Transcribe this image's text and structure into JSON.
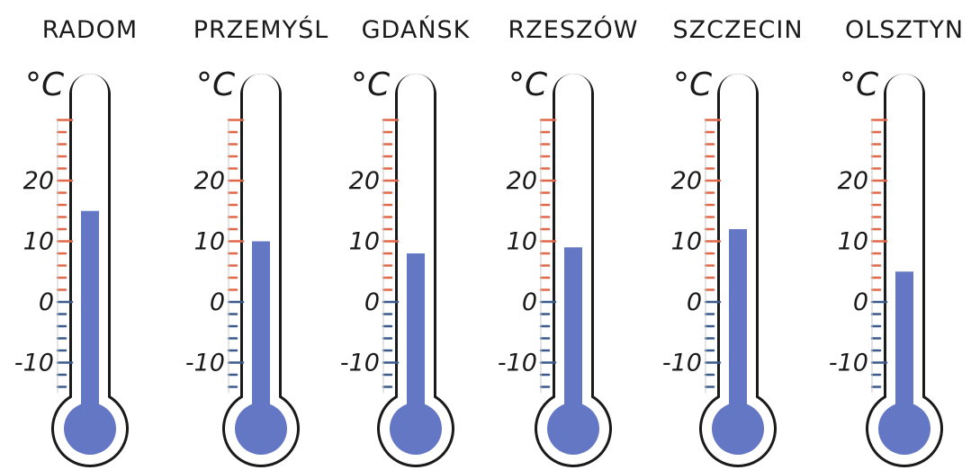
{
  "chart_data": {
    "type": "thermometer",
    "unit_label": "°C",
    "categories": [
      "RADOM",
      "PRZEMYŚL",
      "GDAŃSK",
      "RZESZÓW",
      "SZCZECIN",
      "OLSZTYN"
    ],
    "values": [
      15,
      10,
      8,
      9,
      12,
      5
    ],
    "ticks": [
      20,
      10,
      0,
      -10
    ],
    "tick_labels": [
      "20",
      "10",
      "0",
      "-10"
    ],
    "ylim": [
      -15,
      30
    ],
    "colors": {
      "fill": "#6477c4",
      "outline": "#1a1a1a",
      "positive_ticks": "#e06848",
      "negative_ticks": "#3a5a8c"
    }
  }
}
